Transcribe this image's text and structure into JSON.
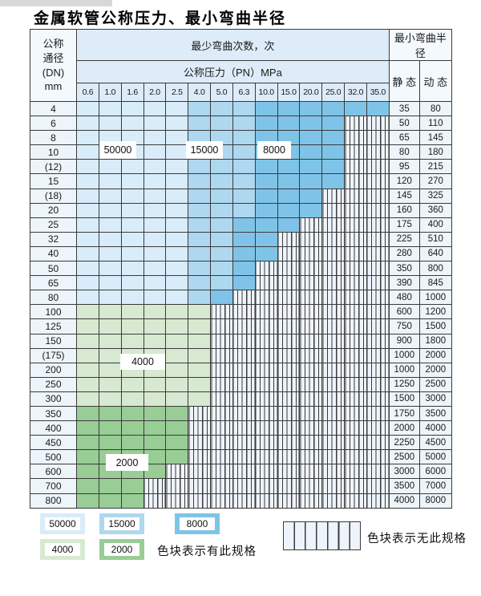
{
  "page": {
    "title": "金属软管公称压力、最小弯曲半径"
  },
  "colors": {
    "c50000": "#d9ecf9",
    "c15000": "#aed7f0",
    "c8000": "#7fc4e8",
    "c4000": "#d8e9d2",
    "c2000": "#99cd96",
    "striped-bg": "#eef4fb",
    "gridline": "#3a3a3a",
    "header-bg": "#ddecf8",
    "side-head-bg": "#f4f9fd",
    "side-cell-bg": "#edf4fa",
    "topbar": "#d8d8d8"
  },
  "table": {
    "header": {
      "dn_label_lines": [
        "公称",
        "通径",
        "(DN)",
        "mm"
      ],
      "bend_cycles_label": "最少弯曲次数，次",
      "pressure_label": "公称压力（PN）MPa",
      "radius_label": "最小弯曲半径",
      "static_label": "静 态",
      "dynamic_label": "动 态"
    },
    "pressures": [
      "0.6",
      "1.0",
      "1.6",
      "2.0",
      "2.5",
      "4.0",
      "5.0",
      "6.3",
      "10.0",
      "15.0",
      "20.0",
      "25.0",
      "32.0",
      "35.0"
    ],
    "spec_classes": {
      "A": "sA",
      "B": "sB",
      "C": "sC",
      "D": "sD",
      "E": "sE",
      ".": "sN"
    },
    "spec_legend_meaning": {
      "A": "50000",
      "B": "15000",
      "C": "8000",
      "D": "4000",
      "E": "2000",
      ".": "no-spec"
    },
    "rows": [
      {
        "dn": "4",
        "spec": "AAAAABBBCCCCCC",
        "static": "35",
        "dynamic": "80"
      },
      {
        "dn": "6",
        "spec": "AAAAABBBCCCC..",
        "static": "50",
        "dynamic": "110"
      },
      {
        "dn": "8",
        "spec": "AAAAABBBCCCC..",
        "static": "65",
        "dynamic": "145"
      },
      {
        "dn": "10",
        "spec": "AAAAABBBCCCC..",
        "static": "80",
        "dynamic": "180"
      },
      {
        "dn": "(12)",
        "spec": "AAAAABBBCCCC..",
        "static": "95",
        "dynamic": "215"
      },
      {
        "dn": "15",
        "spec": "AAAAABBBCCCC..",
        "static": "120",
        "dynamic": "270"
      },
      {
        "dn": "(18)",
        "spec": "AAAAABBBCCC...",
        "static": "145",
        "dynamic": "325"
      },
      {
        "dn": "20",
        "spec": "AAAAABBBCCC...",
        "static": "160",
        "dynamic": "360"
      },
      {
        "dn": "25",
        "spec": "AAAAABBCCC....",
        "static": "175",
        "dynamic": "400"
      },
      {
        "dn": "32",
        "spec": "AAAAABBCC.....",
        "static": "225",
        "dynamic": "510"
      },
      {
        "dn": "40",
        "spec": "AAAAABBCC.....",
        "static": "280",
        "dynamic": "640"
      },
      {
        "dn": "50",
        "spec": "AAAAABBC......",
        "static": "350",
        "dynamic": "800"
      },
      {
        "dn": "65",
        "spec": "AAAAABBC......",
        "static": "390",
        "dynamic": "845"
      },
      {
        "dn": "80",
        "spec": "AAAAABC.......",
        "static": "480",
        "dynamic": "1000"
      },
      {
        "dn": "100",
        "spec": "DDDDDD........",
        "static": "600",
        "dynamic": "1200"
      },
      {
        "dn": "125",
        "spec": "DDDDDD........",
        "static": "750",
        "dynamic": "1500"
      },
      {
        "dn": "150",
        "spec": "DDDDDD........",
        "static": "900",
        "dynamic": "1800"
      },
      {
        "dn": "(175)",
        "spec": "DDDDDD........",
        "static": "1000",
        "dynamic": "2000"
      },
      {
        "dn": "200",
        "spec": "DDDDDD........",
        "static": "1000",
        "dynamic": "2000"
      },
      {
        "dn": "250",
        "spec": "DDDDDD........",
        "static": "1250",
        "dynamic": "2500"
      },
      {
        "dn": "300",
        "spec": "DDDDDD........",
        "static": "1500",
        "dynamic": "3000"
      },
      {
        "dn": "350",
        "spec": "EEEEE.........",
        "static": "1750",
        "dynamic": "3500"
      },
      {
        "dn": "400",
        "spec": "EEEEE.........",
        "static": "2000",
        "dynamic": "4000"
      },
      {
        "dn": "450",
        "spec": "EEEEE.........",
        "static": "2250",
        "dynamic": "4500"
      },
      {
        "dn": "500",
        "spec": "EEEEE.........",
        "static": "2500",
        "dynamic": "5000"
      },
      {
        "dn": "600",
        "spec": "EEEE..........",
        "static": "3000",
        "dynamic": "6000"
      },
      {
        "dn": "700",
        "spec": "EEE...........",
        "static": "3500",
        "dynamic": "7000"
      },
      {
        "dn": "800",
        "spec": "EEE...........",
        "static": "4000",
        "dynamic": "8000"
      }
    ]
  },
  "overlay_labels": [
    {
      "key": "50000",
      "label": "50000"
    },
    {
      "key": "15000",
      "label": "15000"
    },
    {
      "key": "8000",
      "label": "8000"
    },
    {
      "key": "4000",
      "label": "4000"
    },
    {
      "key": "2000",
      "label": "2000"
    }
  ],
  "legend": {
    "swatches": [
      {
        "key": "50000",
        "label": "50000"
      },
      {
        "key": "15000",
        "label": "15000"
      },
      {
        "key": "8000",
        "label": "8000"
      },
      {
        "key": "4000",
        "label": "4000"
      },
      {
        "key": "2000",
        "label": "2000"
      }
    ],
    "has_spec_text": "色块表示有此规格",
    "no_spec_text": "色块表示无此规格"
  }
}
